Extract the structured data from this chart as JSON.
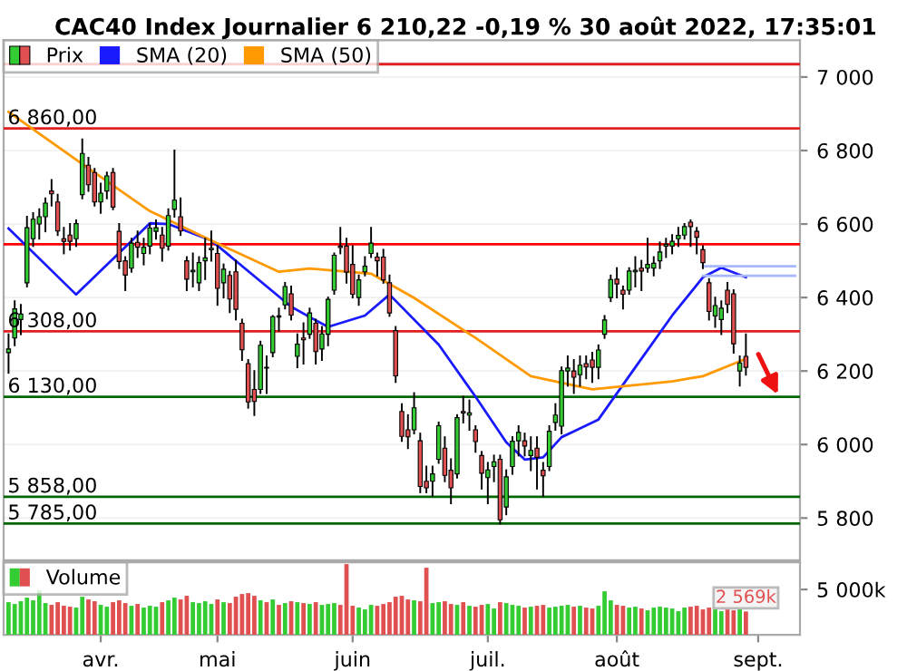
{
  "chart_data": [
    {
      "type": "candlestick",
      "title": "CAC40 Index Journalier 6 210,22 -0,19 % 30 août 2022, 17:35:01",
      "categories": [
        null,
        null,
        null,
        null,
        null,
        null,
        null,
        null,
        null,
        null,
        null,
        null,
        null,
        null,
        null,
        null,
        null,
        null,
        null,
        null,
        null,
        null,
        null,
        null,
        null,
        null,
        null,
        null,
        null,
        null,
        null,
        null,
        null,
        null,
        null,
        null,
        null,
        null,
        null,
        null,
        null,
        null,
        null,
        null,
        null,
        null,
        null,
        null,
        null,
        null,
        null,
        null,
        null,
        null,
        null,
        null,
        null,
        null,
        null,
        null,
        null,
        null,
        null,
        null,
        null,
        null,
        null,
        null,
        null,
        null,
        null,
        null,
        null,
        null,
        null,
        null,
        null,
        null,
        null,
        null,
        null,
        null,
        null,
        null,
        null,
        null,
        null,
        null,
        null,
        null,
        null,
        null,
        null,
        null,
        null,
        null,
        null,
        null,
        null,
        null,
        null,
        null,
        null,
        null,
        null,
        null,
        null,
        null,
        null,
        null,
        null,
        null,
        null,
        null,
        null,
        null,
        null,
        null,
        null,
        null,
        null,
        null,
        null,
        null,
        null,
        null,
        null,
        null,
        null
      ],
      "series": [
        {
          "name": "Prix",
          "type": "candlestick",
          "colors": [
            "#33cc33",
            "#33cc33",
            "#33cc33",
            "#33cc33",
            "#33cc33",
            "#33cc33",
            "#33cc33",
            "#e05050",
            "#e05050",
            "#e05050",
            "#e05050",
            "#33cc33",
            "#33cc33",
            "#e05050",
            "#e05050",
            "#33cc33",
            "#33cc33",
            "#e05050",
            "#e05050",
            "#e05050",
            "#33cc33",
            "#e05050",
            "#33cc33",
            "#33cc33",
            "#33cc33",
            "#e05050",
            "#33cc33",
            "#33cc33",
            "#e05050",
            "#e05050",
            "#33cc33",
            "#33cc33",
            "#33cc33",
            "#33cc33",
            "#e05050",
            "#33cc33",
            "#e05050",
            "#e05050",
            "#e05050",
            "#e05050",
            "#e05050",
            "#33cc33",
            "#e05050",
            "#33cc33",
            "#e05050",
            "#33cc33",
            "#e05050",
            "#33cc33",
            "#e05050",
            "#33cc33",
            "#e05050",
            "#33cc33",
            "#33cc33",
            "#33cc33",
            "#e05050",
            "#e05050",
            "#e05050",
            "#33cc33",
            "#33cc33",
            "#33cc33",
            "#e05050",
            "#e05050",
            "#e05050",
            "#e05050",
            "#e05050",
            "#e05050",
            "#33cc33",
            "#e05050",
            "#e05050",
            "#33cc33",
            "#33cc33",
            "#e05050",
            "#e05050",
            "#33cc33",
            "#e05050",
            "#33cc33",
            "#e05050",
            "#e05050",
            "#33cc33",
            "#33cc33",
            "#e05050",
            "#33cc33",
            "#33cc33",
            "#33cc33",
            "#e05050",
            "#33cc33",
            "#e05050",
            "#e05050",
            "#33cc33",
            "#33cc33",
            "#33cc33",
            "#33cc33",
            "#e05050",
            "#33cc33",
            "#e05050",
            "#e05050",
            "#33cc33",
            "#33cc33",
            "#33cc33",
            "#e05050",
            "#e05050",
            "#33cc33",
            "#33cc33",
            "#e05050",
            "#33cc33",
            "#33cc33",
            "#33cc33",
            "#33cc33",
            "#33cc33",
            "#33cc33",
            "#33cc33",
            "#e05050",
            "#e05050",
            "#e05050",
            "#e05050",
            "#33cc33",
            "#33cc33",
            "#e05050",
            "#e05050",
            "#33cc33",
            "#e05050",
            null,
            null,
            null,
            null,
            null,
            null,
            null,
            null
          ],
          "ohlc": [
            [
              6250,
              6300,
              6195,
              6260
            ],
            [
              6290,
              6390,
              6270,
              6369
            ],
            [
              6340,
              6380,
              6300,
              6355
            ],
            [
              6440,
              6620,
              6430,
              6590
            ],
            [
              6560,
              6630,
              6540,
              6613
            ],
            [
              6600,
              6640,
              6560,
              6620
            ],
            [
              6620,
              6670,
              6580,
              6657
            ],
            [
              6690,
              6720,
              6650,
              6682
            ],
            [
              6660,
              6680,
              6570,
              6581
            ],
            [
              6560,
              6590,
              6520,
              6553
            ],
            [
              6570,
              6600,
              6530,
              6553
            ],
            [
              6560,
              6610,
              6540,
              6601
            ],
            [
              6680,
              6830,
              6670,
              6792
            ],
            [
              6760,
              6780,
              6690,
              6707
            ],
            [
              6740,
              6750,
              6650,
              6660
            ],
            [
              6660,
              6710,
              6630,
              6684
            ],
            [
              6690,
              6740,
              6670,
              6731
            ],
            [
              6740,
              6750,
              6640,
              6646
            ],
            [
              6580,
              6600,
              6480,
              6498
            ],
            [
              6500,
              6510,
              6420,
              6461
            ],
            [
              6480,
              6560,
              6470,
              6548
            ],
            [
              6550,
              6580,
              6510,
              6537
            ],
            [
              6520,
              6560,
              6490,
              6537
            ],
            [
              6540,
              6600,
              6520,
              6589
            ],
            [
              6580,
              6610,
              6560,
              6590
            ],
            [
              6570,
              6590,
              6500,
              6534
            ],
            [
              6540,
              6640,
              6530,
              6623
            ],
            [
              6640,
              6800,
              6620,
              6665
            ],
            [
              6620,
              6670,
              6570,
              6581
            ],
            [
              6500,
              6510,
              6420,
              6450
            ],
            [
              6470,
              6520,
              6430,
              6474
            ],
            [
              6440,
              6510,
              6420,
              6495
            ],
            [
              6500,
              6560,
              6450,
              6508
            ],
            [
              6530,
              6580,
              6500,
              6534
            ],
            [
              6520,
              6540,
              6380,
              6425
            ],
            [
              6440,
              6490,
              6400,
              6477
            ],
            [
              6460,
              6470,
              6360,
              6396
            ],
            [
              6470,
              6500,
              6340,
              6368
            ],
            [
              6330,
              6340,
              6230,
              6258
            ],
            [
              6220,
              6230,
              6100,
              6116
            ],
            [
              6150,
              6200,
              6080,
              6117
            ],
            [
              6150,
              6280,
              6140,
              6270
            ],
            [
              6210,
              6240,
              6140,
              6208
            ],
            [
              6250,
              6350,
              6240,
              6348
            ],
            [
              6350,
              6370,
              6310,
              6347
            ],
            [
              6380,
              6440,
              6370,
              6430
            ],
            [
              6410,
              6430,
              6340,
              6352
            ],
            [
              6240,
              6300,
              6210,
              6273
            ],
            [
              6290,
              6330,
              6220,
              6285
            ],
            [
              6300,
              6370,
              6290,
              6358
            ],
            [
              6330,
              6340,
              6220,
              6253
            ],
            [
              6260,
              6320,
              6230,
              6301
            ],
            [
              6300,
              6400,
              6270,
              6395
            ],
            [
              6420,
              6520,
              6410,
              6515
            ],
            [
              6540,
              6590,
              6520,
              6536
            ],
            [
              6540,
              6560,
              6440,
              6469
            ],
            [
              6490,
              6540,
              6400,
              6409
            ],
            [
              6400,
              6460,
              6380,
              6448
            ],
            [
              6470,
              6510,
              6460,
              6485
            ],
            [
              6520,
              6590,
              6510,
              6548
            ],
            [
              6510,
              6520,
              6460,
              6500
            ],
            [
              6510,
              6530,
              6440,
              6448
            ],
            [
              6440,
              6460,
              6350,
              6358
            ],
            [
              6310,
              6320,
              6170,
              6187
            ],
            [
              6090,
              6110,
              6010,
              6022
            ],
            [
              6040,
              6080,
              5990,
              6021
            ],
            [
              6040,
              6140,
              6030,
              6100
            ],
            [
              6010,
              6030,
              5870,
              5886
            ],
            [
              5900,
              5940,
              5870,
              5882
            ],
            [
              5900,
              5940,
              5860,
              5920
            ],
            [
              5960,
              6060,
              5950,
              6051
            ],
            [
              5990,
              6020,
              5900,
              5916
            ],
            [
              5930,
              5960,
              5840,
              5882
            ],
            [
              5920,
              6080,
              5910,
              6073
            ],
            [
              6090,
              6130,
              6060,
              6086
            ],
            [
              6080,
              6120,
              6040,
              6086
            ],
            [
              6040,
              6050,
              5980,
              6008
            ],
            [
              5970,
              5980,
              5880,
              5922
            ],
            [
              5910,
              5950,
              5840,
              5931
            ],
            [
              5940,
              5970,
              5900,
              5953
            ],
            [
              5960,
              5970,
              5785,
              5795
            ],
            [
              5830,
              5930,
              5810,
              5912
            ],
            [
              5940,
              6020,
              5920,
              6009
            ],
            [
              6010,
              6050,
              5970,
              6033
            ],
            [
              6010,
              6030,
              5970,
              5996
            ],
            [
              5970,
              6020,
              5930,
              5984
            ],
            [
              5990,
              6020,
              5880,
              5965
            ],
            [
              5930,
              5950,
              5860,
              5915
            ],
            [
              5940,
              6050,
              5930,
              6036
            ],
            [
              6060,
              6110,
              6040,
              6080
            ],
            [
              6050,
              6210,
              6030,
              6201
            ],
            [
              6200,
              6240,
              6160,
              6208
            ],
            [
              6200,
              6230,
              6140,
              6183
            ],
            [
              6190,
              6240,
              6160,
              6216
            ],
            [
              6220,
              6240,
              6180,
              6211
            ],
            [
              6230,
              6250,
              6170,
              6210
            ],
            [
              6210,
              6270,
              6180,
              6257
            ],
            [
              6300,
              6350,
              6290,
              6339
            ],
            [
              6400,
              6460,
              6390,
              6449
            ],
            [
              6450,
              6480,
              6400,
              6437
            ],
            [
              6420,
              6430,
              6370,
              6409
            ],
            [
              6420,
              6480,
              6410,
              6472
            ],
            [
              6470,
              6510,
              6430,
              6474
            ],
            [
              6480,
              6500,
              6420,
              6472
            ],
            [
              6480,
              6560,
              6470,
              6490
            ],
            [
              6480,
              6510,
              6460,
              6493
            ],
            [
              6500,
              6550,
              6480,
              6524
            ],
            [
              6540,
              6560,
              6510,
              6545
            ],
            [
              6540,
              6570,
              6520,
              6553
            ],
            [
              6560,
              6590,
              6540,
              6569
            ],
            [
              6570,
              6600,
              6560,
              6593
            ],
            [
              6605,
              6610,
              6540,
              6593
            ],
            [
              6580,
              6590,
              6520,
              6564
            ],
            [
              6530,
              6540,
              6480,
              6495
            ],
            [
              6440,
              6450,
              6340,
              6362
            ],
            [
              6350,
              6400,
              6320,
              6378
            ],
            [
              6340,
              6390,
              6300,
              6371
            ],
            [
              6420,
              6440,
              6360,
              6381
            ],
            [
              6410,
              6420,
              6250,
              6274
            ],
            [
              6200,
              6240,
              6160,
              6222
            ],
            [
              6240,
              6300,
              6190,
              6210
            ],
            null,
            null,
            null,
            null,
            null,
            null,
            null,
            null
          ]
        },
        {
          "name": "SMA (20)",
          "type": "line",
          "color": "#1a1aff",
          "values": [
            6588,
            null,
            null,
            null,
            null,
            null,
            null,
            null,
            null,
            null,
            null,
            6408,
            null,
            null,
            null,
            null,
            null,
            null,
            null,
            null,
            null,
            null,
            null,
            6602,
            null,
            null,
            6600,
            null,
            null,
            null,
            null,
            null,
            null,
            6555,
            null,
            null,
            null,
            null,
            null,
            null,
            null,
            null,
            null,
            null,
            null,
            null,
            6375,
            null,
            null,
            6347,
            null,
            null,
            6320,
            null,
            null,
            null,
            null,
            null,
            6351,
            null,
            null,
            null,
            6408,
            null,
            null,
            null,
            null,
            null,
            null,
            null,
            6272,
            null,
            null,
            null,
            null,
            null,
            6130,
            null,
            null,
            null,
            null,
            6006,
            null,
            null,
            5959,
            null,
            null,
            5965,
            null,
            null,
            6020,
            null,
            6036,
            null,
            null,
            null,
            6068,
            null,
            null,
            null,
            null,
            null,
            6210,
            null,
            null,
            null,
            null,
            null,
            6351,
            null,
            null,
            null,
            null,
            6455,
            null,
            null,
            6481,
            null,
            null,
            null,
            6455,
            null,
            null,
            null,
            null,
            null,
            null,
            null,
            null
          ]
        },
        {
          "name": "SMA (50)",
          "type": "line",
          "color": "#ff9900",
          "values": [
            6905,
            null,
            null,
            null,
            null,
            null,
            null,
            null,
            null,
            null,
            null,
            null,
            6763,
            null,
            null,
            null,
            null,
            null,
            null,
            null,
            null,
            null,
            null,
            6635,
            null,
            null,
            null,
            null,
            null,
            null,
            null,
            null,
            null,
            6555,
            null,
            null,
            null,
            null,
            null,
            null,
            null,
            null,
            null,
            null,
            6470,
            null,
            null,
            null,
            null,
            6479,
            null,
            null,
            null,
            null,
            null,
            null,
            null,
            null,
            null,
            6465,
            null,
            null,
            null,
            null,
            null,
            null,
            6399,
            null,
            null,
            null,
            null,
            null,
            null,
            null,
            null,
            null,
            6290,
            null,
            null,
            null,
            null,
            null,
            null,
            null,
            null,
            6186,
            null,
            null,
            null,
            null,
            null,
            null,
            null,
            null,
            null,
            6150,
            null,
            null,
            null,
            null,
            null,
            null,
            null,
            null,
            null,
            null,
            null,
            null,
            6172,
            null,
            null,
            null,
            null,
            6186,
            null,
            null,
            null,
            null,
            null,
            null,
            6233,
            null,
            null,
            null,
            null,
            null,
            null,
            null,
            null
          ]
        },
        {
          "type": "line",
          "color": "#a8b8ff",
          "values": [
            null,
            null,
            null,
            null,
            null,
            null,
            null,
            null,
            null,
            null,
            null,
            null,
            null,
            null,
            null,
            null,
            null,
            null,
            null,
            null,
            null,
            null,
            null,
            null,
            null,
            null,
            null,
            null,
            null,
            null,
            null,
            null,
            null,
            null,
            null,
            null,
            null,
            null,
            null,
            null,
            null,
            null,
            null,
            null,
            null,
            null,
            null,
            null,
            null,
            null,
            null,
            null,
            null,
            null,
            null,
            null,
            null,
            null,
            null,
            null,
            null,
            null,
            null,
            null,
            null,
            null,
            null,
            null,
            null,
            null,
            null,
            null,
            null,
            null,
            null,
            null,
            null,
            null,
            null,
            null,
            null,
            null,
            null,
            null,
            null,
            null,
            null,
            null,
            null,
            null,
            null,
            null,
            null,
            null,
            null,
            null,
            null,
            null,
            null,
            null,
            null,
            null,
            null,
            null,
            null,
            null,
            null,
            null,
            null,
            null,
            null,
            null,
            null,
            6485,
            6485,
            6485,
            6485,
            6485,
            6485,
            6485,
            6485,
            6485,
            6485,
            6485,
            6485,
            6485,
            6485,
            6485,
            6485
          ]
        },
        {
          "type": "line",
          "color": "#a8b8ff",
          "values": [
            null,
            null,
            null,
            null,
            null,
            null,
            null,
            null,
            null,
            null,
            null,
            null,
            null,
            null,
            null,
            null,
            null,
            null,
            null,
            null,
            null,
            null,
            null,
            null,
            null,
            null,
            null,
            null,
            null,
            null,
            null,
            null,
            null,
            null,
            null,
            null,
            null,
            null,
            null,
            null,
            null,
            null,
            null,
            null,
            null,
            null,
            null,
            null,
            null,
            null,
            null,
            null,
            null,
            null,
            null,
            null,
            null,
            null,
            null,
            null,
            null,
            null,
            null,
            null,
            null,
            null,
            null,
            null,
            null,
            null,
            null,
            null,
            null,
            null,
            null,
            null,
            null,
            null,
            null,
            null,
            null,
            null,
            null,
            null,
            null,
            null,
            null,
            null,
            null,
            null,
            null,
            null,
            null,
            null,
            null,
            null,
            null,
            null,
            null,
            null,
            null,
            null,
            null,
            null,
            null,
            null,
            null,
            null,
            null,
            null,
            null,
            null,
            null,
            6459,
            6459,
            6459,
            6459,
            6459,
            6459,
            6459,
            6459,
            6459,
            6459,
            6459,
            6459,
            6459,
            6459,
            6459,
            6459
          ]
        }
      ],
      "ref_lines": [
        {
          "axis": "y",
          "value": 7035,
          "color": "#e02020"
        },
        {
          "axis": "y",
          "value": 6860,
          "label": "6 860,00",
          "color": "#e02020"
        },
        {
          "axis": "y",
          "value": 6545,
          "color": "#ff0000"
        },
        {
          "axis": "y",
          "value": 6308,
          "label": "6 308,00",
          "color": "#e02020"
        },
        {
          "axis": "y",
          "value": 6130,
          "label": "6 130,00",
          "color": "#006600"
        },
        {
          "axis": "y",
          "value": 5858,
          "label": "5 858,00",
          "color": "#006600"
        },
        {
          "axis": "y",
          "value": 5785,
          "label": "5 785,00",
          "color": "#006600"
        }
      ],
      "ylim": [
        5685,
        7100
      ],
      "yticks": [
        {
          "value": 5800,
          "label": "5 800"
        },
        {
          "value": 6000,
          "label": "6 000"
        },
        {
          "value": 6200,
          "label": "6 200"
        },
        {
          "value": 6400,
          "label": "6 400"
        },
        {
          "value": 6600,
          "label": "6 600"
        },
        {
          "value": 6800,
          "label": "6 800"
        },
        {
          "value": 7000,
          "label": "7 000"
        }
      ],
      "tick_labels": "y",
      "legend": "top left",
      "grid": "y"
    },
    {
      "type": "bar",
      "categories": [
        null,
        null,
        null,
        null,
        null,
        null,
        null,
        null,
        null,
        null,
        null,
        null,
        null,
        null,
        null,
        "avr.",
        null,
        null,
        null,
        null,
        null,
        null,
        null,
        null,
        null,
        null,
        null,
        null,
        null,
        null,
        null,
        null,
        null,
        null,
        "mai",
        null,
        null,
        null,
        null,
        null,
        null,
        null,
        null,
        null,
        null,
        null,
        null,
        null,
        null,
        null,
        null,
        null,
        null,
        null,
        null,
        null,
        "juin",
        null,
        null,
        null,
        null,
        null,
        null,
        null,
        null,
        null,
        null,
        null,
        null,
        null,
        null,
        null,
        null,
        null,
        null,
        null,
        null,
        null,
        "juil.",
        null,
        null,
        null,
        null,
        null,
        null,
        null,
        null,
        null,
        null,
        null,
        null,
        null,
        null,
        null,
        null,
        null,
        null,
        null,
        null,
        "août",
        null,
        null,
        null,
        null,
        null,
        null,
        null,
        null,
        null,
        null,
        null,
        null,
        null,
        null,
        null,
        null,
        null,
        null,
        null,
        null,
        null,
        null,
        "sept.",
        null,
        null,
        null,
        null,
        null,
        null
      ],
      "series": [
        {
          "name": "Volume",
          "values": [
            3600,
            3400,
            3700,
            4100,
            3800,
            4900,
            3500,
            3300,
            3600,
            3200,
            3100,
            3000,
            4200,
            3900,
            3700,
            3300,
            3100,
            3600,
            3800,
            3500,
            3200,
            3400,
            3000,
            3200,
            3100,
            3600,
            3800,
            4100,
            3900,
            4300,
            3600,
            3500,
            3700,
            3400,
            3900,
            3600,
            3500,
            4200,
            4500,
            4600,
            4300,
            3800,
            3600,
            3900,
            3300,
            3500,
            3700,
            3600,
            3500,
            3400,
            3600,
            3300,
            3400,
            3500,
            3300,
            7800,
            3200,
            3000,
            2800,
            3300,
            3200,
            3400,
            3600,
            4200,
            4300,
            3900,
            3800,
            3700,
            7400,
            3500,
            3600,
            3700,
            3400,
            3300,
            3600,
            3200,
            3100,
            3300,
            3400,
            2900,
            3600,
            3500,
            3300,
            3200,
            3000,
            3100,
            3200,
            3300,
            3000,
            3100,
            3200,
            3300,
            3100,
            3200,
            3000,
            2900,
            3200,
            4800,
            3800,
            3300,
            3200,
            3000,
            3100,
            2900,
            2700,
            3000,
            3100,
            3000,
            2900,
            2600,
            3000,
            3100,
            3200,
            2800,
            3000,
            3200,
            2600,
            2800,
            2700,
            2900,
            2569,
            null,
            null,
            null,
            null,
            null,
            null,
            null,
            null
          ],
          "colors": [
            "#33cc33",
            "#33cc33",
            "#33cc33",
            "#33cc33",
            "#33cc33",
            "#33cc33",
            "#33cc33",
            "#e05050",
            "#e05050",
            "#e05050",
            "#e05050",
            "#33cc33",
            "#33cc33",
            "#e05050",
            "#e05050",
            "#33cc33",
            "#33cc33",
            "#e05050",
            "#e05050",
            "#e05050",
            "#33cc33",
            "#e05050",
            "#33cc33",
            "#33cc33",
            "#33cc33",
            "#e05050",
            "#33cc33",
            "#33cc33",
            "#e05050",
            "#e05050",
            "#33cc33",
            "#33cc33",
            "#33cc33",
            "#33cc33",
            "#e05050",
            "#33cc33",
            "#e05050",
            "#e05050",
            "#e05050",
            "#e05050",
            "#e05050",
            "#33cc33",
            "#e05050",
            "#33cc33",
            "#e05050",
            "#33cc33",
            "#e05050",
            "#33cc33",
            "#e05050",
            "#33cc33",
            "#e05050",
            "#33cc33",
            "#33cc33",
            "#33cc33",
            "#e05050",
            "#e05050",
            "#e05050",
            "#33cc33",
            "#33cc33",
            "#33cc33",
            "#e05050",
            "#e05050",
            "#e05050",
            "#e05050",
            "#e05050",
            "#e05050",
            "#33cc33",
            "#e05050",
            "#e05050",
            "#33cc33",
            "#33cc33",
            "#e05050",
            "#e05050",
            "#33cc33",
            "#e05050",
            "#33cc33",
            "#e05050",
            "#e05050",
            "#33cc33",
            "#33cc33",
            "#e05050",
            "#33cc33",
            "#33cc33",
            "#33cc33",
            "#e05050",
            "#33cc33",
            "#e05050",
            "#e05050",
            "#33cc33",
            "#33cc33",
            "#33cc33",
            "#33cc33",
            "#e05050",
            "#33cc33",
            "#e05050",
            "#e05050",
            "#33cc33",
            "#33cc33",
            "#33cc33",
            "#e05050",
            "#e05050",
            "#33cc33",
            "#33cc33",
            "#e05050",
            "#33cc33",
            "#33cc33",
            "#33cc33",
            "#33cc33",
            "#33cc33",
            "#33cc33",
            "#33cc33",
            "#e05050",
            "#e05050",
            "#e05050",
            "#e05050",
            "#33cc33",
            "#33cc33",
            "#e05050",
            "#e05050",
            "#33cc33",
            "#e05050",
            null,
            null,
            null,
            null,
            null,
            null,
            null,
            null
          ],
          "value_labels": [
            null,
            null,
            null,
            null,
            null,
            null,
            null,
            null,
            null,
            null,
            null,
            null,
            null,
            null,
            null,
            null,
            null,
            null,
            null,
            null,
            null,
            null,
            null,
            null,
            null,
            null,
            null,
            null,
            null,
            null,
            null,
            null,
            null,
            null,
            null,
            null,
            null,
            null,
            null,
            null,
            null,
            null,
            null,
            null,
            null,
            null,
            null,
            null,
            null,
            null,
            null,
            null,
            null,
            null,
            null,
            null,
            null,
            null,
            null,
            null,
            null,
            null,
            null,
            null,
            null,
            null,
            null,
            null,
            null,
            null,
            null,
            null,
            null,
            null,
            null,
            null,
            null,
            null,
            null,
            null,
            null,
            null,
            null,
            null,
            null,
            null,
            null,
            null,
            null,
            null,
            null,
            null,
            null,
            null,
            null,
            null,
            null,
            null,
            null,
            null,
            null,
            null,
            null,
            null,
            null,
            null,
            null,
            null,
            null,
            null,
            null,
            null,
            null,
            null,
            null,
            null,
            null,
            null,
            null,
            null,
            "2 569k",
            null,
            null,
            null,
            null,
            null,
            null,
            null,
            null
          ]
        }
      ],
      "ylim": [
        0,
        8000
      ],
      "yticks": [
        {
          "value": 5000,
          "label": "5 000k"
        }
      ],
      "legend": "top left"
    }
  ]
}
